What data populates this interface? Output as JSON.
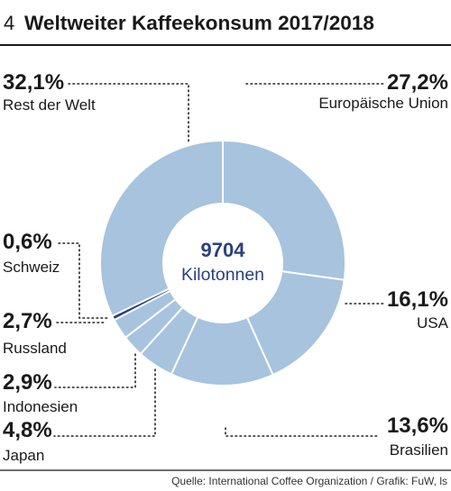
{
  "header": {
    "number": "4",
    "title": "Weltweiter Kaffeekonsum 2017/2018"
  },
  "chart_data": {
    "type": "donut",
    "title": "Weltweiter Kaffeekonsum 2017/2018",
    "center": {
      "value": "9704",
      "unit": "Kilotonnen"
    },
    "total": 9704,
    "slices": [
      {
        "name": "Europäische Union",
        "label": "27,2%",
        "value": 27.2
      },
      {
        "name": "USA",
        "label": "16,1%",
        "value": 16.1
      },
      {
        "name": "Brasilien",
        "label": "13,6%",
        "value": 13.6
      },
      {
        "name": "Japan",
        "label": "4,8%",
        "value": 4.8
      },
      {
        "name": "Indonesien",
        "label": "2,9%",
        "value": 2.9
      },
      {
        "name": "Russland",
        "label": "2,7%",
        "value": 2.7
      },
      {
        "name": "Schweiz",
        "label": "0,6%",
        "value": 0.6,
        "highlight": true
      },
      {
        "name": "Rest der Welt",
        "label": "32,1%",
        "value": 32.1
      }
    ]
  },
  "colors": {
    "slice": "#a7c3de",
    "highlight": "#2b3f82",
    "center_text": "#2b3f82",
    "text": "#1a1a1a"
  },
  "source": "Quelle: International Coffee Organization / Grafik: FuW, ls"
}
